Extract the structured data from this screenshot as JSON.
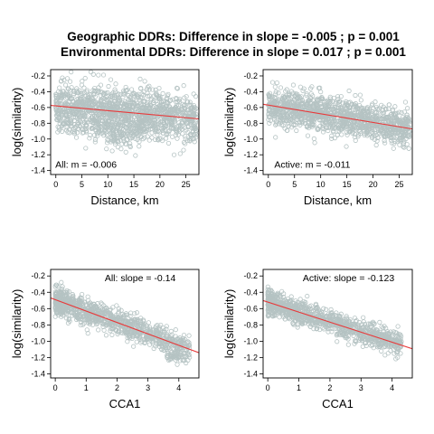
{
  "title_line1": "Geographic DDRs: Difference in slope = -0.005 ; p = 0.001",
  "title_line2": "Environmental DDRs: Difference in slope = 0.017 ; p = 0.001",
  "colors": {
    "points": "#b5c3c3",
    "fit_line": "#e8393a",
    "axis": "#000000"
  },
  "chart_data": [
    {
      "type": "scatter",
      "xlabel": "Distance, km",
      "ylabel": "log(similarity)",
      "xlim": [
        -1,
        27.5
      ],
      "ylim": [
        -1.45,
        -0.12
      ],
      "xticks": [
        0,
        5,
        10,
        15,
        20,
        25
      ],
      "yticks": [
        -1.4,
        -1.2,
        -1.0,
        -0.8,
        -0.6,
        -0.4,
        -0.2
      ],
      "annotation": "All: m =  -0.006",
      "annotation_pos": [
        5.8,
        -1.32
      ],
      "fit": {
        "intercept": -0.58,
        "slope": -0.006
      },
      "points": {
        "n": 1300,
        "xrange": [
          0,
          27
        ],
        "xpower": 1.0,
        "center": -0.58,
        "spread": 0.15,
        "ymin": -1.2,
        "ymax": -0.15,
        "clusters": [
          {
            "x": 12.5,
            "y": -0.88,
            "sx": 3.5,
            "sy": 0.12,
            "n": 180
          }
        ]
      }
    },
    {
      "type": "scatter",
      "xlabel": "Distance, km",
      "ylabel": "log(similarity)",
      "xlim": [
        -1,
        27.5
      ],
      "ylim": [
        -1.45,
        -0.12
      ],
      "xticks": [
        0,
        5,
        10,
        15,
        20,
        25
      ],
      "yticks": [
        -1.4,
        -1.2,
        -1.0,
        -0.8,
        -0.6,
        -0.4,
        -0.2
      ],
      "annotation": "Active: m =  -0.011",
      "annotation_pos": [
        8.4,
        -1.32
      ],
      "fit": {
        "intercept": -0.57,
        "slope": -0.011
      },
      "points": {
        "n": 1300,
        "xrange": [
          0,
          27
        ],
        "xpower": 1.0,
        "center": -0.57,
        "spread": 0.12,
        "ymin": -1.12,
        "ymax": -0.17,
        "clusters": []
      }
    },
    {
      "type": "scatter",
      "xlabel": "CCA1",
      "ylabel": "log(similarity)",
      "xlim": [
        -0.15,
        4.65
      ],
      "ylim": [
        -1.45,
        -0.12
      ],
      "xticks": [
        0,
        1,
        2,
        3,
        4
      ],
      "yticks": [
        -1.4,
        -1.2,
        -1.0,
        -0.8,
        -0.6,
        -0.4,
        -0.2
      ],
      "annotation": "All: slope =  -0.14",
      "annotation_pos": [
        2.75,
        -0.22
      ],
      "fit": {
        "intercept": -0.49,
        "slope": -0.14
      },
      "points": {
        "n": 1100,
        "xrange": [
          0,
          4.35
        ],
        "xpower": 1.5,
        "center": -0.49,
        "spread": 0.08,
        "ymin": -1.3,
        "ymax": -0.13,
        "clusters": [
          {
            "x": 3.9,
            "y": -1.2,
            "sx": 0.2,
            "sy": 0.04,
            "n": 35
          }
        ]
      }
    },
    {
      "type": "scatter",
      "xlabel": "CCA1",
      "ylabel": "log(similarity)",
      "xlim": [
        -0.15,
        4.65
      ],
      "ylim": [
        -1.45,
        -0.12
      ],
      "xticks": [
        0,
        1,
        2,
        3,
        4
      ],
      "yticks": [
        -1.4,
        -1.2,
        -1.0,
        -0.8,
        -0.6,
        -0.4,
        -0.2
      ],
      "annotation": "Active: slope =  -0.123",
      "annotation_pos": [
        2.6,
        -0.22
      ],
      "fit": {
        "intercept": -0.52,
        "slope": -0.123
      },
      "points": {
        "n": 1100,
        "xrange": [
          0,
          4.3
        ],
        "xpower": 1.5,
        "center": -0.52,
        "spread": 0.07,
        "ymin": -1.25,
        "ymax": -0.18,
        "clusters": []
      }
    }
  ]
}
